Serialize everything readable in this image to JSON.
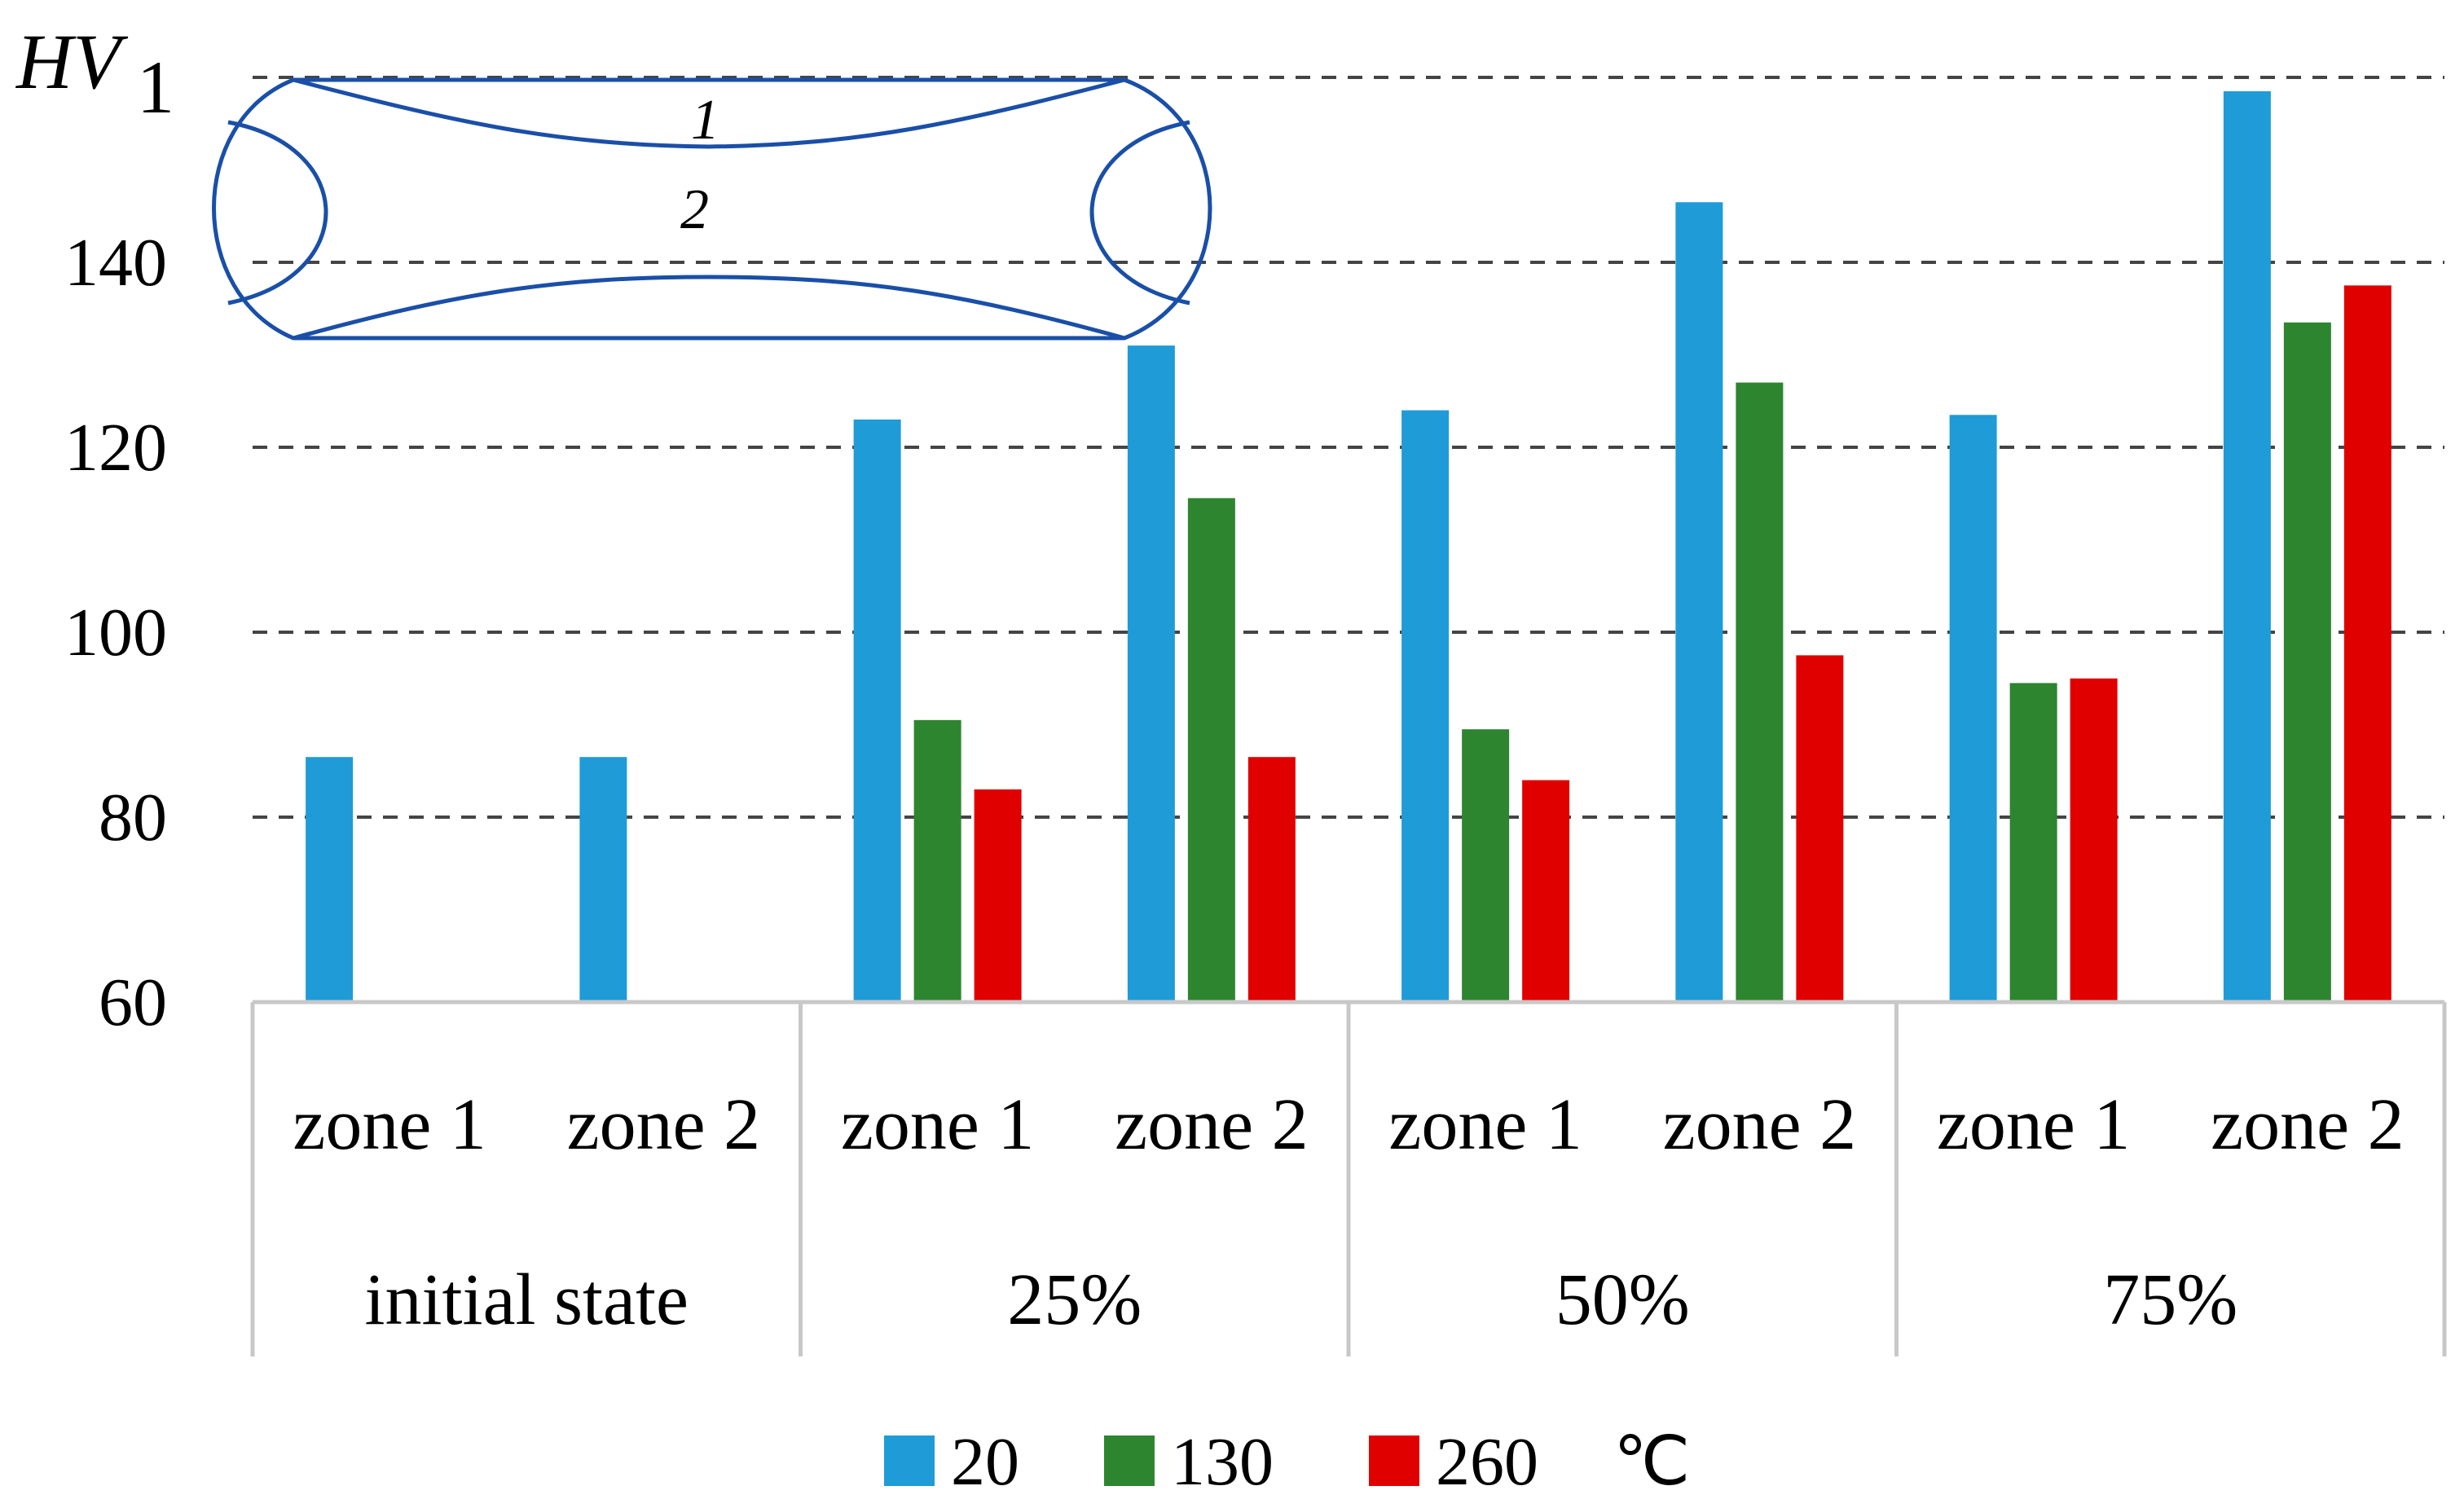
{
  "chart_data": {
    "type": "bar",
    "ylabel": "HV",
    "ylabel_subscript": "1",
    "ylim": [
      60,
      162
    ],
    "yticks": [
      "60",
      "80",
      "100",
      "120",
      "140"
    ],
    "ytick_values": [
      60,
      80,
      100,
      120,
      140
    ],
    "grid": "dashed horizontal",
    "groups": [
      {
        "label": "initial state",
        "categories": [
          "zone 1",
          "zone 2"
        ]
      },
      {
        "label": "25%",
        "categories": [
          "zone 1",
          "zone 2"
        ]
      },
      {
        "label": "50%",
        "categories": [
          "zone 1",
          "zone 2"
        ]
      },
      {
        "label": "75%",
        "categories": [
          "zone 1",
          "zone 2"
        ]
      }
    ],
    "series": [
      {
        "name": "20",
        "color": "#1f9bd7",
        "values": [
          86.5,
          86.5,
          123,
          131,
          124,
          146.5,
          123.5,
          158.5
        ]
      },
      {
        "name": "130",
        "color": "#2e8530",
        "values": [
          null,
          null,
          90.5,
          114.5,
          89.5,
          127,
          94.5,
          133.5
        ]
      },
      {
        "name": "260",
        "color": "#e00000",
        "values": [
          null,
          null,
          83,
          86.5,
          84,
          97.5,
          95,
          137.5
        ]
      }
    ],
    "legend": {
      "position": "bottom",
      "unit": "℃"
    },
    "inset": {
      "zone_labels": [
        "1",
        "2"
      ]
    }
  }
}
